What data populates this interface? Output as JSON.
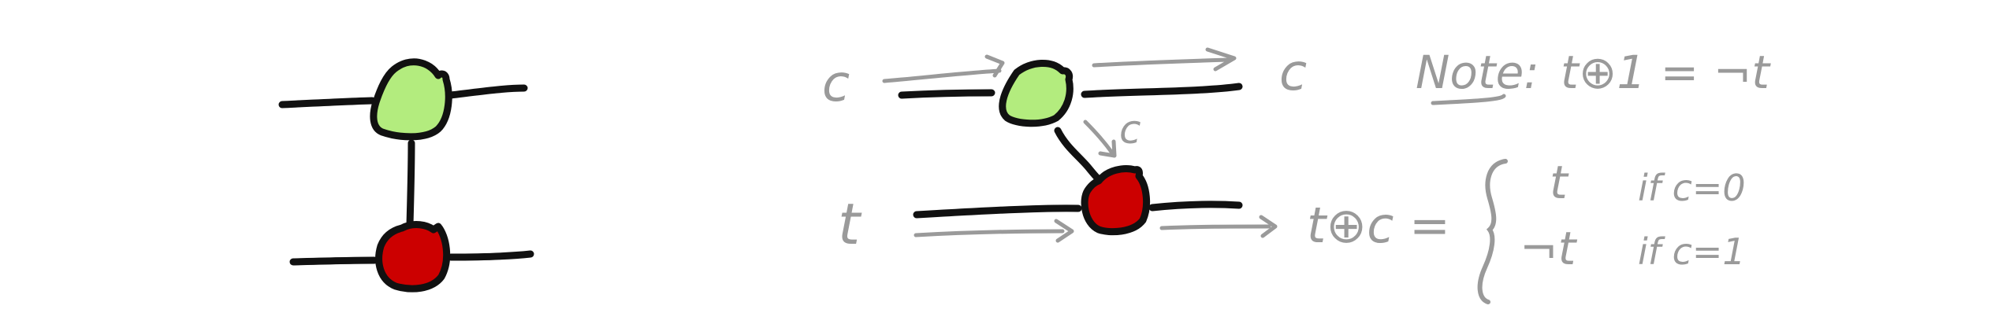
{
  "colors": {
    "green_spider": "#b3ec7e",
    "red_spider": "#cc0000",
    "wire": "#111111",
    "annotation": "#9a9a9a",
    "background": "#ffffff"
  },
  "labels": {
    "control_in": "c",
    "control_out": "c",
    "copy_label": "c",
    "target_in": "t",
    "result_lhs": "t⊕c =",
    "case_top_value": "t",
    "case_top_condition": "if c=0",
    "case_bottom_value": "¬t",
    "case_bottom_condition": "if c=1",
    "note_prefix": "Note:",
    "note_equation": "t⊕1 = ¬t"
  }
}
